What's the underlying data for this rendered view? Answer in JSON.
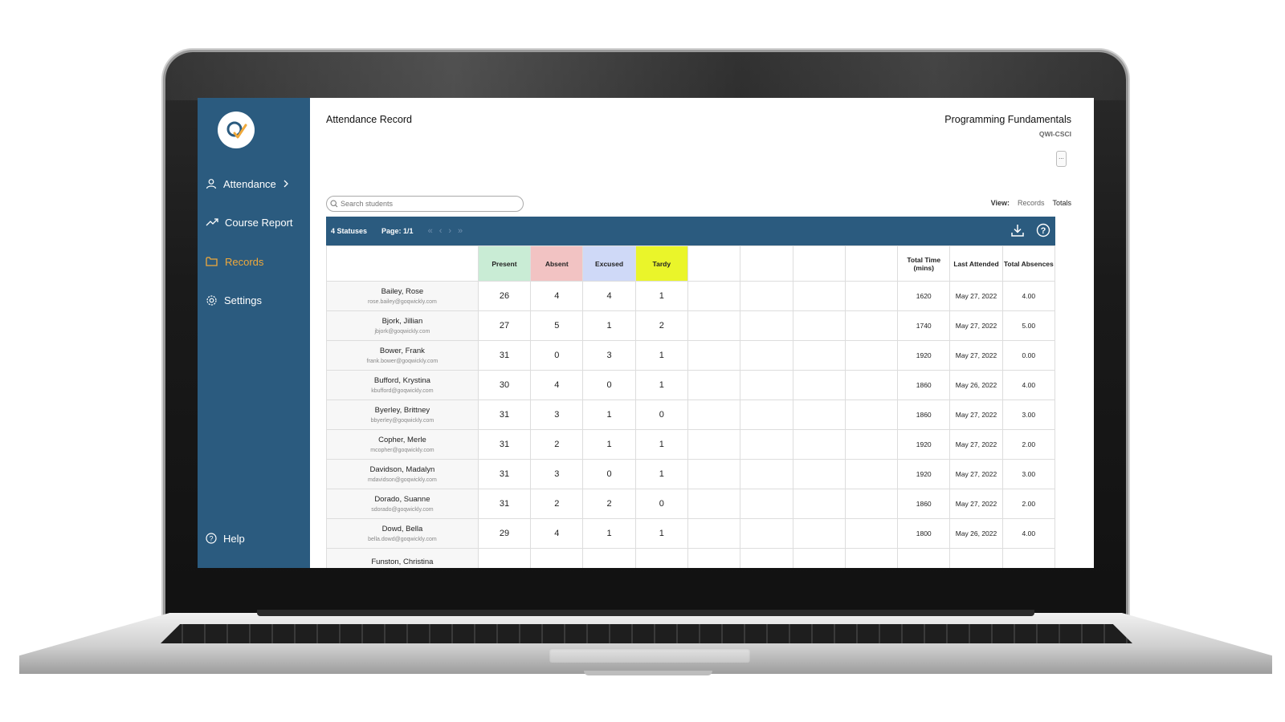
{
  "app": {
    "nav": [
      {
        "label": "Attendance",
        "icon": "user-icon",
        "active": false
      },
      {
        "label": "Course Report",
        "icon": "trend-icon",
        "active": false
      },
      {
        "label": "Records",
        "icon": "folder-icon",
        "active": true
      },
      {
        "label": "Settings",
        "icon": "gear-icon",
        "active": false
      }
    ],
    "help_label": "Help",
    "accent_color": "#f0a93b",
    "sidebar_color": "#2b5b7f"
  },
  "header": {
    "title": "Attendance Record",
    "course_name": "Programming Fundamentals",
    "course_code": "QWI-CSCI",
    "more_label": "..."
  },
  "search": {
    "placeholder": "Search students",
    "value": ""
  },
  "view": {
    "label": "View:",
    "options": [
      "Records",
      "Totals"
    ],
    "selected": "Totals"
  },
  "toolbar": {
    "statuses": "4 Statuses",
    "page": "Page: 1/1"
  },
  "table": {
    "status_columns": [
      {
        "label": "Present",
        "color": "#c9ecd5"
      },
      {
        "label": "Absent",
        "color": "#f2c3c3"
      },
      {
        "label": "Excused",
        "color": "#cfd9f7"
      },
      {
        "label": "Tardy",
        "color": "#eaf52a"
      }
    ],
    "total_time_header": "Total Time (mins)",
    "last_attended_header": "Last Attended",
    "total_absences_header": "Total Absences",
    "rows": [
      {
        "name": "Bailey, Rose",
        "email": "rose.bailey@goqwickly.com",
        "present": "26",
        "absent": "4",
        "excused": "4",
        "tardy": "1",
        "total_time": "1620",
        "last_attended": "May 27, 2022",
        "total_absences": "4.00"
      },
      {
        "name": "Bjork, Jillian",
        "email": "jbjork@goqwickly.com",
        "present": "27",
        "absent": "5",
        "excused": "1",
        "tardy": "2",
        "total_time": "1740",
        "last_attended": "May 27, 2022",
        "total_absences": "5.00"
      },
      {
        "name": "Bower, Frank",
        "email": "frank.bower@goqwickly.com",
        "present": "31",
        "absent": "0",
        "excused": "3",
        "tardy": "1",
        "total_time": "1920",
        "last_attended": "May 27, 2022",
        "total_absences": "0.00"
      },
      {
        "name": "Bufford, Krystina",
        "email": "kbufford@goqwickly.com",
        "present": "30",
        "absent": "4",
        "excused": "0",
        "tardy": "1",
        "total_time": "1860",
        "last_attended": "May 26, 2022",
        "total_absences": "4.00"
      },
      {
        "name": "Byerley, Brittney",
        "email": "bbyerley@goqwickly.com",
        "present": "31",
        "absent": "3",
        "excused": "1",
        "tardy": "0",
        "total_time": "1860",
        "last_attended": "May 27, 2022",
        "total_absences": "3.00"
      },
      {
        "name": "Copher, Merle",
        "email": "mcopher@goqwickly.com",
        "present": "31",
        "absent": "2",
        "excused": "1",
        "tardy": "1",
        "total_time": "1920",
        "last_attended": "May 27, 2022",
        "total_absences": "2.00"
      },
      {
        "name": "Davidson, Madalyn",
        "email": "mdavidson@goqwickly.com",
        "present": "31",
        "absent": "3",
        "excused": "0",
        "tardy": "1",
        "total_time": "1920",
        "last_attended": "May 27, 2022",
        "total_absences": "3.00"
      },
      {
        "name": "Dorado, Suanne",
        "email": "sdorado@goqwickly.com",
        "present": "31",
        "absent": "2",
        "excused": "2",
        "tardy": "0",
        "total_time": "1860",
        "last_attended": "May 27, 2022",
        "total_absences": "2.00"
      },
      {
        "name": "Dowd, Bella",
        "email": "bella.dowd@goqwickly.com",
        "present": "29",
        "absent": "4",
        "excused": "1",
        "tardy": "1",
        "total_time": "1800",
        "last_attended": "May 26, 2022",
        "total_absences": "4.00"
      },
      {
        "name": "Funston, Christina",
        "email": "",
        "present": "",
        "absent": "",
        "excused": "",
        "tardy": "",
        "total_time": "",
        "last_attended": "",
        "total_absences": ""
      }
    ]
  }
}
